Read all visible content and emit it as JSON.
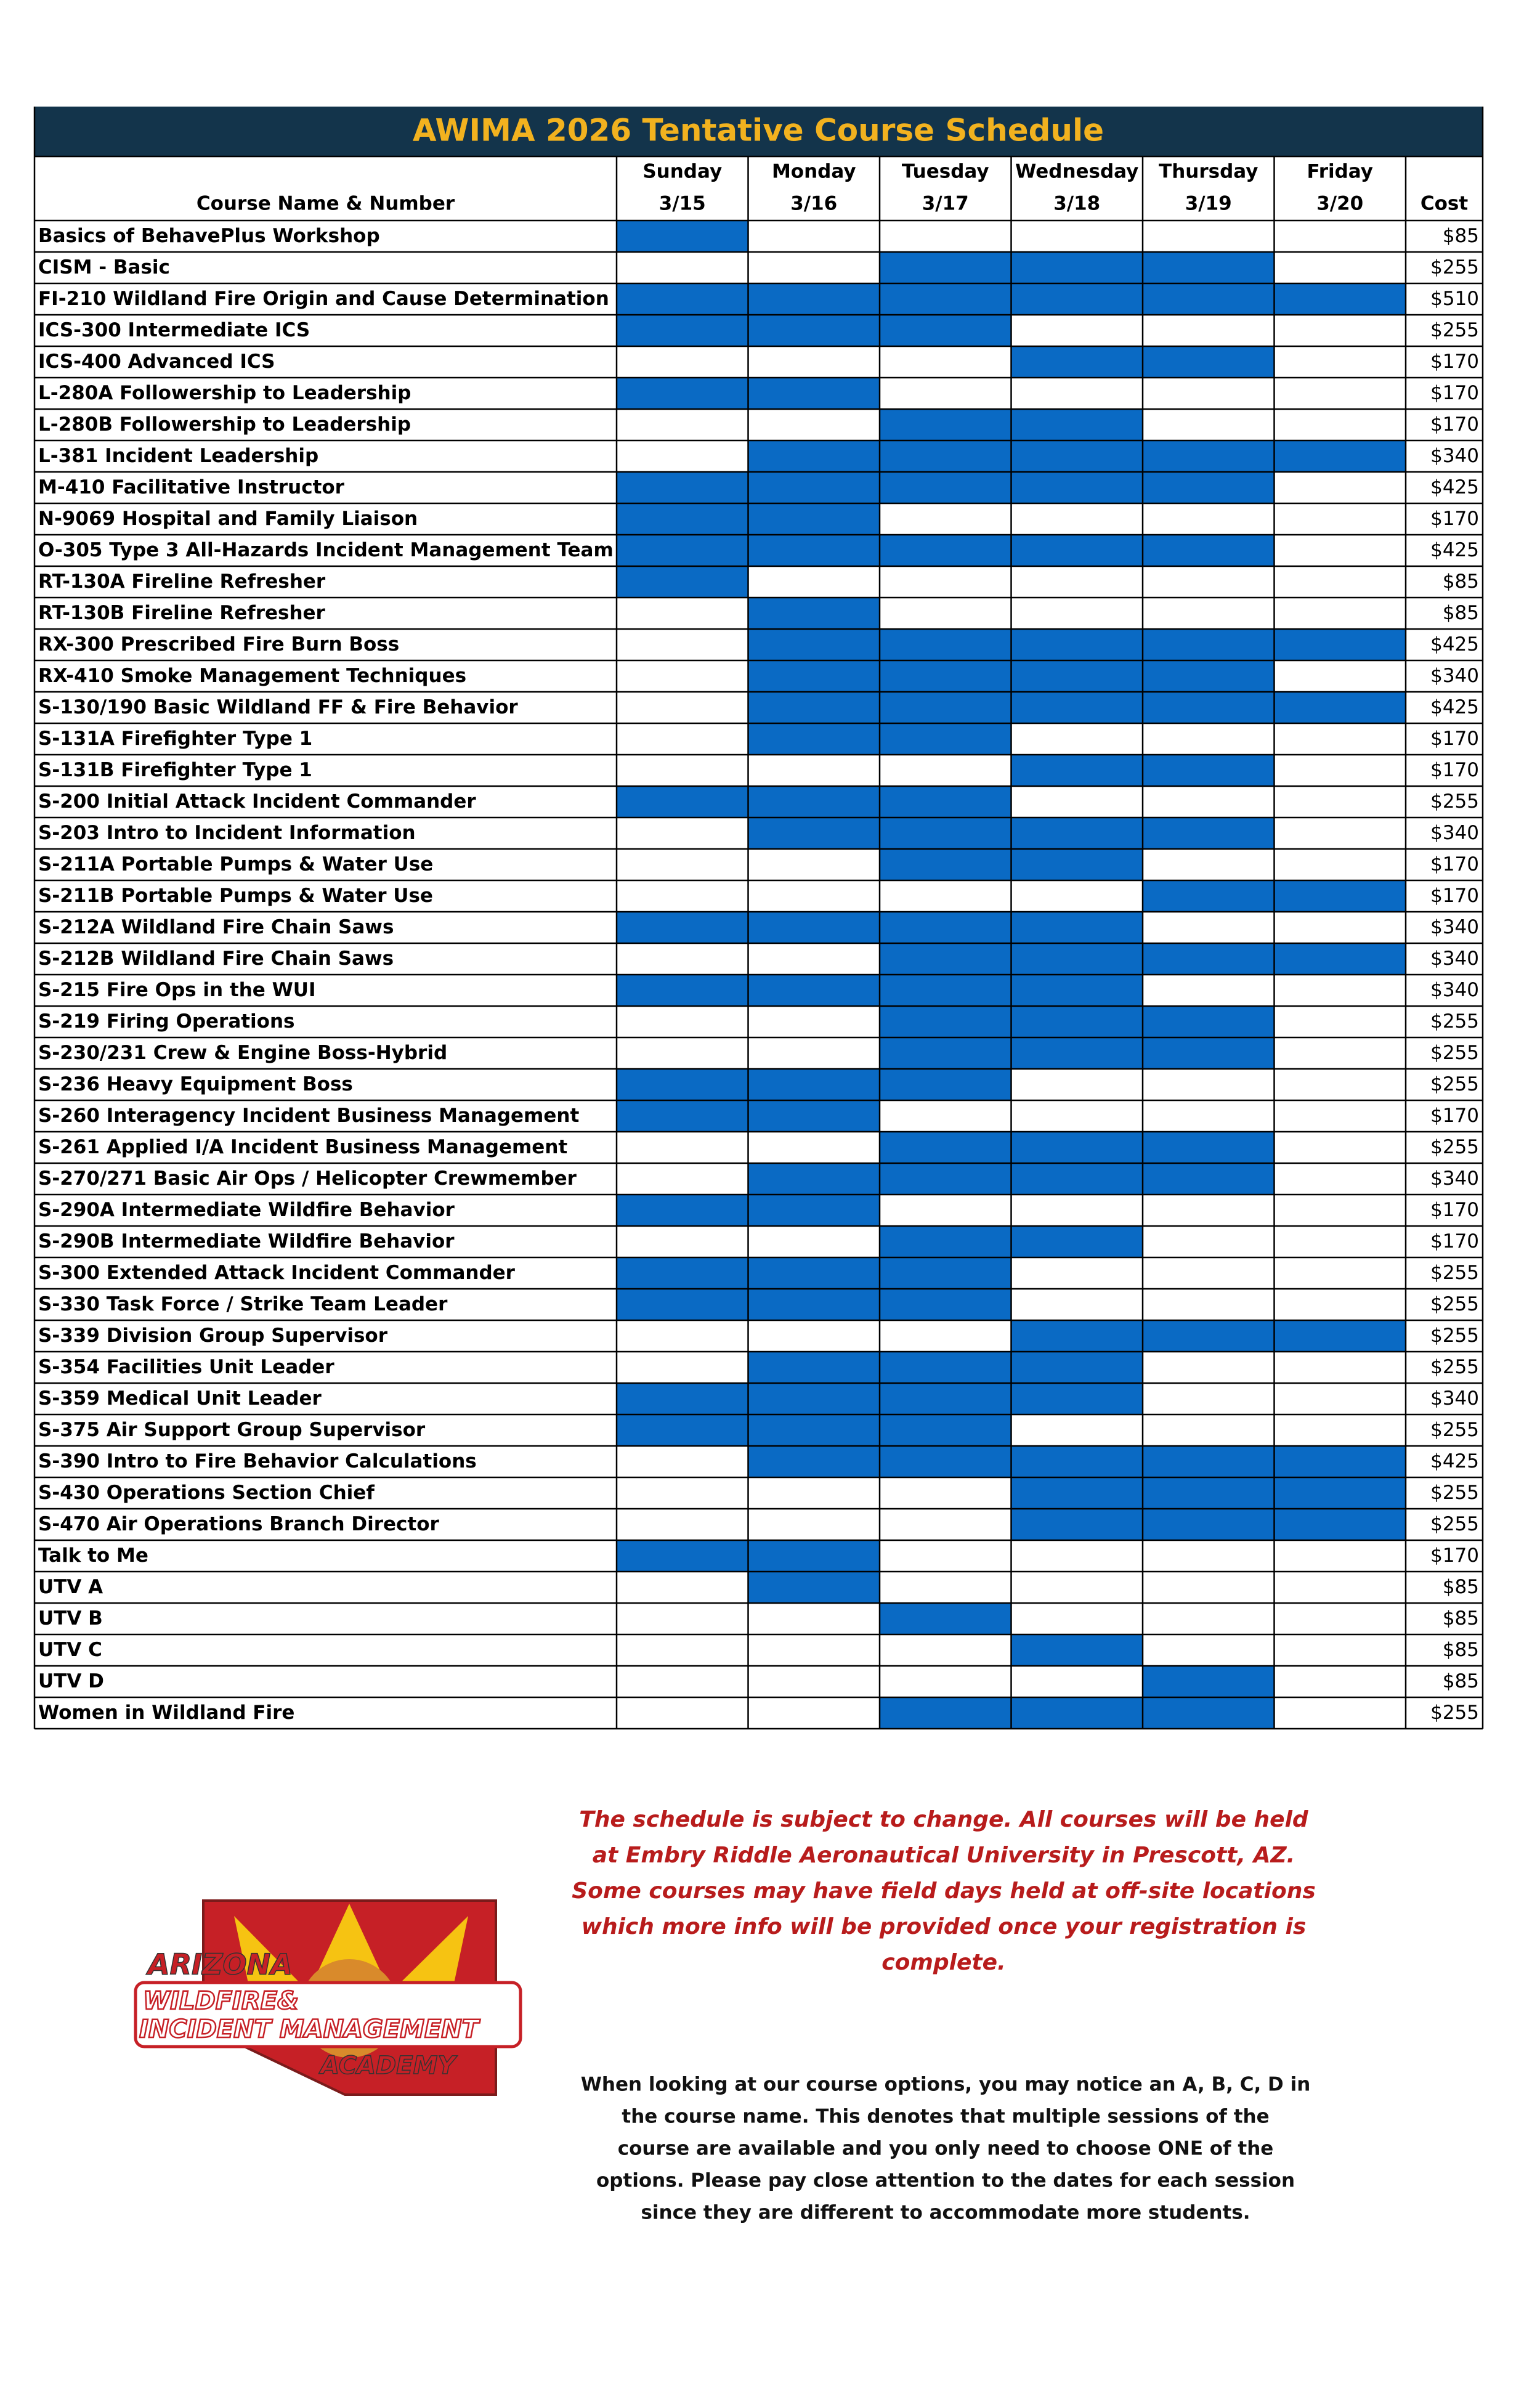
{
  "header": {
    "title": "AWIMA 2026 Tentative Course Schedule",
    "course_column": "Course Name & Number",
    "cost_column": "Cost",
    "days": [
      {
        "name": "Sunday",
        "date": "3/15"
      },
      {
        "name": "Monday",
        "date": "3/16"
      },
      {
        "name": "Tuesday",
        "date": "3/17"
      },
      {
        "name": "Wednesday",
        "date": "3/18"
      },
      {
        "name": "Thursday",
        "date": "3/19"
      },
      {
        "name": "Friday",
        "date": "3/20"
      }
    ]
  },
  "fill_color": "#0a6ac4",
  "table": {
    "rows": [
      {
        "name": "Basics of BehavePlus Workshop",
        "days": [
          true,
          false,
          false,
          false,
          false,
          false
        ],
        "cost": "$85"
      },
      {
        "name": "CISM - Basic",
        "days": [
          false,
          false,
          true,
          true,
          true,
          false
        ],
        "cost": "$255"
      },
      {
        "name": "FI-210 Wildland Fire Origin and Cause Determination",
        "days": [
          true,
          true,
          true,
          true,
          true,
          true
        ],
        "cost": "$510"
      },
      {
        "name": "ICS-300 Intermediate ICS",
        "days": [
          true,
          true,
          true,
          false,
          false,
          false
        ],
        "cost": "$255"
      },
      {
        "name": "ICS-400 Advanced ICS",
        "days": [
          false,
          false,
          false,
          true,
          true,
          false
        ],
        "cost": "$170"
      },
      {
        "name": "L-280A Followership to Leadership",
        "days": [
          true,
          true,
          false,
          false,
          false,
          false
        ],
        "cost": "$170"
      },
      {
        "name": "L-280B Followership to Leadership",
        "days": [
          false,
          false,
          true,
          true,
          false,
          false
        ],
        "cost": "$170"
      },
      {
        "name": "L-381 Incident Leadership",
        "days": [
          false,
          true,
          true,
          true,
          true,
          true
        ],
        "cost": "$340"
      },
      {
        "name": "M-410 Facilitative Instructor",
        "days": [
          true,
          true,
          true,
          true,
          true,
          false
        ],
        "cost": "$425"
      },
      {
        "name": "N-9069 Hospital and Family Liaison",
        "days": [
          true,
          true,
          false,
          false,
          false,
          false
        ],
        "cost": "$170"
      },
      {
        "name": "O-305 Type 3 All-Hazards Incident Management Team",
        "days": [
          true,
          true,
          true,
          true,
          true,
          false
        ],
        "cost": "$425"
      },
      {
        "name": "RT-130A Fireline Refresher",
        "days": [
          true,
          false,
          false,
          false,
          false,
          false
        ],
        "cost": "$85"
      },
      {
        "name": "RT-130B Fireline Refresher",
        "days": [
          false,
          true,
          false,
          false,
          false,
          false
        ],
        "cost": "$85"
      },
      {
        "name": "RX-300 Prescribed Fire Burn Boss",
        "days": [
          false,
          true,
          true,
          true,
          true,
          true
        ],
        "cost": "$425"
      },
      {
        "name": "RX-410 Smoke Management Techniques",
        "days": [
          false,
          true,
          true,
          true,
          true,
          false
        ],
        "cost": "$340"
      },
      {
        "name": "S-130/190 Basic Wildland FF & Fire Behavior",
        "days": [
          false,
          true,
          true,
          true,
          true,
          true
        ],
        "cost": "$425"
      },
      {
        "name": "S-131A Firefighter Type 1",
        "days": [
          false,
          true,
          true,
          false,
          false,
          false
        ],
        "cost": "$170"
      },
      {
        "name": "S-131B Firefighter Type 1",
        "days": [
          false,
          false,
          false,
          true,
          true,
          false
        ],
        "cost": "$170"
      },
      {
        "name": "S-200 Initial Attack Incident Commander",
        "days": [
          true,
          true,
          true,
          false,
          false,
          false
        ],
        "cost": "$255"
      },
      {
        "name": "S-203 Intro to Incident Information",
        "days": [
          false,
          true,
          true,
          true,
          true,
          false
        ],
        "cost": "$340"
      },
      {
        "name": "S-211A Portable Pumps & Water Use",
        "days": [
          false,
          false,
          true,
          true,
          false,
          false
        ],
        "cost": "$170"
      },
      {
        "name": "S-211B Portable Pumps & Water Use",
        "days": [
          false,
          false,
          false,
          false,
          true,
          true
        ],
        "cost": "$170"
      },
      {
        "name": "S-212A Wildland Fire Chain Saws",
        "days": [
          true,
          true,
          true,
          true,
          false,
          false
        ],
        "cost": "$340"
      },
      {
        "name": "S-212B Wildland Fire Chain Saws",
        "days": [
          false,
          false,
          true,
          true,
          true,
          true
        ],
        "cost": "$340"
      },
      {
        "name": "S-215 Fire Ops in the WUI",
        "days": [
          true,
          true,
          true,
          true,
          false,
          false
        ],
        "cost": "$340"
      },
      {
        "name": "S-219 Firing Operations",
        "days": [
          false,
          false,
          true,
          true,
          true,
          false
        ],
        "cost": "$255"
      },
      {
        "name": "S-230/231 Crew & Engine Boss-Hybrid",
        "days": [
          false,
          false,
          true,
          true,
          true,
          false
        ],
        "cost": "$255"
      },
      {
        "name": "S-236 Heavy Equipment Boss",
        "days": [
          true,
          true,
          true,
          false,
          false,
          false
        ],
        "cost": "$255"
      },
      {
        "name": "S-260 Interagency Incident Business Management",
        "days": [
          true,
          true,
          false,
          false,
          false,
          false
        ],
        "cost": "$170"
      },
      {
        "name": "S-261 Applied I/A Incident Business Management",
        "days": [
          false,
          false,
          true,
          true,
          true,
          false
        ],
        "cost": "$255"
      },
      {
        "name": "S-270/271 Basic Air Ops / Helicopter Crewmember",
        "days": [
          false,
          true,
          true,
          true,
          true,
          false
        ],
        "cost": "$340"
      },
      {
        "name": "S-290A Intermediate Wildfire Behavior",
        "days": [
          true,
          true,
          false,
          false,
          false,
          false
        ],
        "cost": "$170"
      },
      {
        "name": "S-290B Intermediate Wildfire Behavior",
        "days": [
          false,
          false,
          true,
          true,
          false,
          false
        ],
        "cost": "$170"
      },
      {
        "name": "S-300 Extended Attack Incident Commander",
        "days": [
          true,
          true,
          true,
          false,
          false,
          false
        ],
        "cost": "$255"
      },
      {
        "name": "S-330 Task Force / Strike Team Leader",
        "days": [
          true,
          true,
          true,
          false,
          false,
          false
        ],
        "cost": "$255"
      },
      {
        "name": "S-339 Division Group Supervisor",
        "days": [
          false,
          false,
          false,
          true,
          true,
          true
        ],
        "cost": "$255"
      },
      {
        "name": "S-354 Facilities Unit Leader",
        "days": [
          false,
          true,
          true,
          true,
          false,
          false
        ],
        "cost": "$255"
      },
      {
        "name": "S-359 Medical Unit Leader",
        "days": [
          true,
          true,
          true,
          true,
          false,
          false
        ],
        "cost": "$340"
      },
      {
        "name": "S-375 Air Support Group Supervisor",
        "days": [
          true,
          true,
          true,
          false,
          false,
          false
        ],
        "cost": "$255"
      },
      {
        "name": "S-390 Intro to Fire Behavior Calculations",
        "days": [
          false,
          true,
          true,
          true,
          true,
          true
        ],
        "cost": "$425"
      },
      {
        "name": "S-430 Operations Section Chief",
        "days": [
          false,
          false,
          false,
          true,
          true,
          true
        ],
        "cost": "$255"
      },
      {
        "name": "S-470 Air Operations Branch Director",
        "days": [
          false,
          false,
          false,
          true,
          true,
          true
        ],
        "cost": "$255"
      },
      {
        "name": "Talk to Me",
        "days": [
          true,
          true,
          false,
          false,
          false,
          false
        ],
        "cost": "$170"
      },
      {
        "name": "UTV A",
        "days": [
          false,
          true,
          false,
          false,
          false,
          false
        ],
        "cost": "$85"
      },
      {
        "name": "UTV B",
        "days": [
          false,
          false,
          true,
          false,
          false,
          false
        ],
        "cost": "$85"
      },
      {
        "name": "UTV C",
        "days": [
          false,
          false,
          false,
          true,
          false,
          false
        ],
        "cost": "$85"
      },
      {
        "name": "UTV D",
        "days": [
          false,
          false,
          false,
          false,
          true,
          false
        ],
        "cost": "$85"
      },
      {
        "name": "Women in Wildland Fire",
        "days": [
          false,
          false,
          true,
          true,
          true,
          false
        ],
        "cost": "$255"
      }
    ]
  },
  "notes": {
    "red": [
      "The schedule is subject to change. All courses will be held",
      "at Embry Riddle Aeronautical University in Prescott, AZ.",
      "Some courses may have field days held at off-site locations",
      "which more info will be provided once your registration is",
      "complete."
    ],
    "black": [
      "When looking at our course options, you may notice an A, B, C, D in",
      "the course name. This denotes that multiple sessions of the",
      "course are available and you only need to choose ONE of the",
      "options. Please pay close attention to the dates for each session",
      "since they are different to accommodate more students."
    ]
  },
  "logo": {
    "lines": [
      "ARIZONA",
      "WILDFIRE&",
      "INCIDENT MANAGEMENT",
      "ACADEMY"
    ]
  }
}
